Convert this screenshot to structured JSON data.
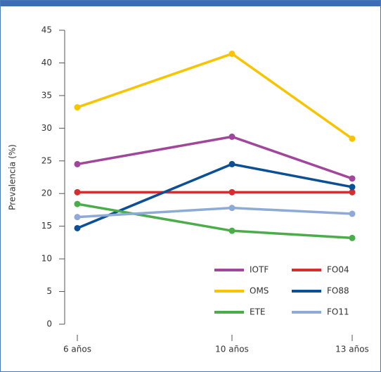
{
  "chart_data": {
    "type": "line",
    "y_label": "Prevalencia (%)",
    "categories": [
      "6 años",
      "10 años",
      "13 años"
    ],
    "series": [
      {
        "name": "IOTF",
        "color": "#a0469b",
        "values": [
          24.5,
          28.7,
          22.3
        ]
      },
      {
        "name": "FO04",
        "color": "#d42e2e",
        "values": [
          20.2,
          20.2,
          20.2
        ]
      },
      {
        "name": "OMS",
        "color": "#f8c400",
        "values": [
          33.2,
          41.4,
          28.4
        ]
      },
      {
        "name": "FO88",
        "color": "#0b4f97",
        "values": [
          14.7,
          24.5,
          21.0
        ]
      },
      {
        "name": "ETE",
        "color": "#4aad4a",
        "values": [
          18.4,
          14.3,
          13.2
        ]
      },
      {
        "name": "FO11",
        "color": "#8eaad6",
        "values": [
          16.4,
          17.8,
          16.9
        ]
      }
    ],
    "ylim": [
      0,
      45
    ],
    "yticks": [
      0,
      5,
      10,
      15,
      20,
      25,
      30,
      35,
      40,
      45
    ],
    "grid": false
  }
}
